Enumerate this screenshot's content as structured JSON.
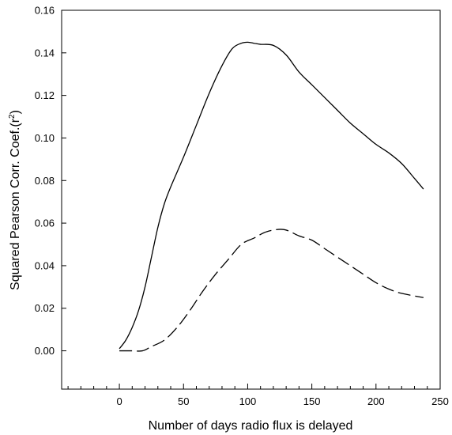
{
  "chart_data": {
    "type": "line",
    "title": "",
    "xlabel": "Number of days radio flux is delayed",
    "ylabel_main": "Squared Pearson Corr. Coef.(r",
    "ylabel_sup": "2",
    "ylabel_close": ")",
    "xlim": [
      -45,
      250
    ],
    "ylim": [
      -0.018,
      0.16
    ],
    "x_ticks": [
      0,
      50,
      100,
      150,
      200,
      250
    ],
    "x_tick_labels": [
      "0",
      "50",
      "100",
      "150",
      "200",
      "250"
    ],
    "x_minor_step": 10,
    "y_ticks": [
      0.0,
      0.02,
      0.04,
      0.06,
      0.08,
      0.1,
      0.12,
      0.14,
      0.16
    ],
    "y_tick_labels": [
      "0.00",
      "0.02",
      "0.04",
      "0.06",
      "0.08",
      "0.10",
      "0.12",
      "0.14",
      "0.16"
    ],
    "grid": false,
    "series": [
      {
        "style": "solid",
        "color": "#000000",
        "x": [
          0,
          5,
          10,
          15,
          20,
          25,
          30,
          35,
          40,
          50,
          60,
          70,
          80,
          88,
          95,
          100,
          105,
          110,
          120,
          130,
          140,
          150,
          160,
          170,
          180,
          190,
          200,
          210,
          220,
          230,
          237
        ],
        "y": [
          0.001,
          0.005,
          0.011,
          0.019,
          0.03,
          0.044,
          0.058,
          0.069,
          0.077,
          0.091,
          0.106,
          0.121,
          0.134,
          0.142,
          0.1445,
          0.145,
          0.1445,
          0.144,
          0.1435,
          0.139,
          0.131,
          0.125,
          0.119,
          0.113,
          0.107,
          0.102,
          0.097,
          0.093,
          0.088,
          0.081,
          0.076
        ]
      },
      {
        "style": "dashed",
        "color": "#000000",
        "x": [
          0,
          10,
          18,
          25,
          35,
          45,
          55,
          65,
          75,
          85,
          95,
          105,
          115,
          128,
          140,
          150,
          160,
          170,
          180,
          190,
          200,
          210,
          220,
          237
        ],
        "y": [
          0.0,
          0.0,
          0.0,
          0.002,
          0.005,
          0.011,
          0.019,
          0.028,
          0.036,
          0.043,
          0.05,
          0.053,
          0.056,
          0.057,
          0.054,
          0.052,
          0.048,
          0.044,
          0.04,
          0.036,
          0.032,
          0.029,
          0.027,
          0.025
        ]
      }
    ]
  }
}
